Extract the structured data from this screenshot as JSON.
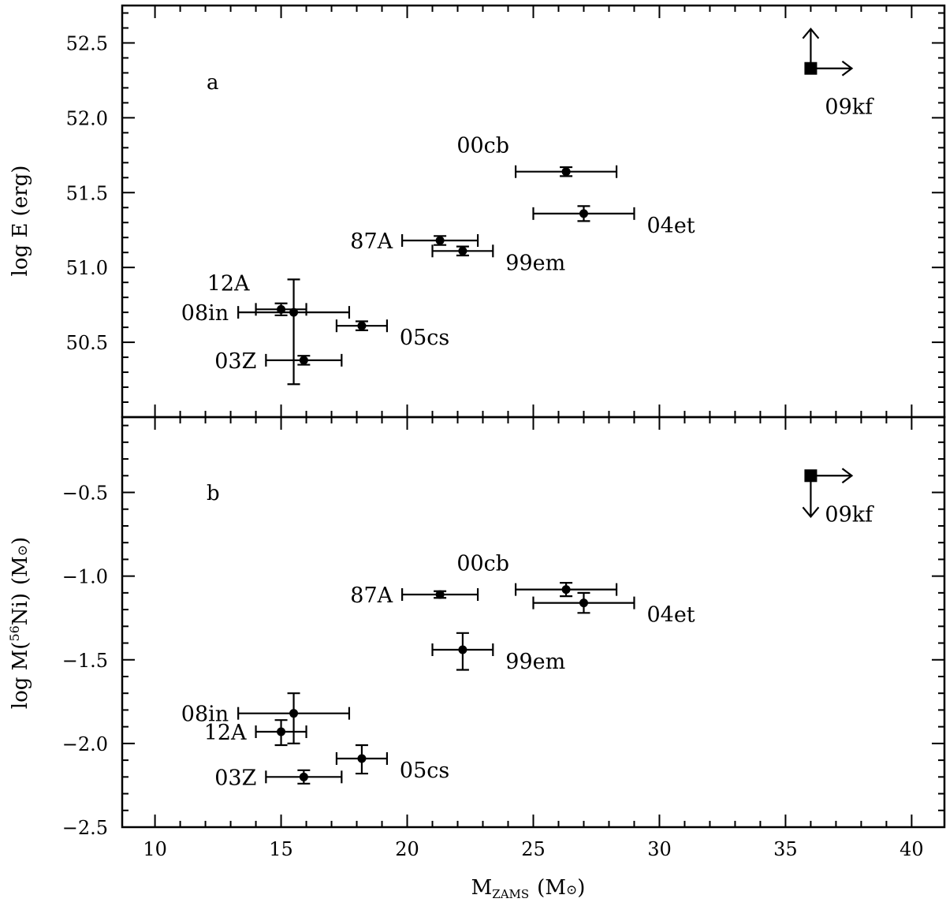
{
  "chart_data": [
    {
      "type": "scatter",
      "panel": "a",
      "ylabel": "log E (erg)",
      "xlim": [
        8.7,
        41.3
      ],
      "ylim": [
        50.0,
        52.75
      ],
      "xticks": [
        10,
        15,
        20,
        25,
        30,
        35,
        40
      ],
      "yticks": [
        50.5,
        51.0,
        51.5,
        52.0,
        52.5
      ],
      "ytick_labels": [
        "50.5",
        "51.0",
        "51.5",
        "52.0",
        "52.5"
      ],
      "points": [
        {
          "label": "87A",
          "x": 21.3,
          "xerr_lo": 1.5,
          "xerr_hi": 1.5,
          "y": 51.18,
          "yerr_lo": 0.03,
          "yerr_hi": 0.03,
          "label_pos": "left"
        },
        {
          "label": "99em",
          "x": 22.2,
          "xerr_lo": 1.2,
          "xerr_hi": 1.2,
          "y": 51.11,
          "yerr_lo": 0.03,
          "yerr_hi": 0.03,
          "label_pos": "right"
        },
        {
          "label": "00cb",
          "x": 26.3,
          "xerr_lo": 2.0,
          "xerr_hi": 2.0,
          "y": 51.64,
          "yerr_lo": 0.03,
          "yerr_hi": 0.03,
          "label_pos": "upper-left"
        },
        {
          "label": "03Z",
          "x": 15.9,
          "xerr_lo": 1.5,
          "xerr_hi": 1.5,
          "y": 50.38,
          "yerr_lo": 0.03,
          "yerr_hi": 0.03,
          "label_pos": "left"
        },
        {
          "label": "04et",
          "x": 27.0,
          "xerr_lo": 2.0,
          "xerr_hi": 2.0,
          "y": 51.36,
          "yerr_lo": 0.05,
          "yerr_hi": 0.05,
          "label_pos": "right"
        },
        {
          "label": "05cs",
          "x": 18.2,
          "xerr_lo": 1.0,
          "xerr_hi": 1.0,
          "y": 50.61,
          "yerr_lo": 0.03,
          "yerr_hi": 0.03,
          "label_pos": "right"
        },
        {
          "label": "12A",
          "x": 15.0,
          "xerr_lo": 1.0,
          "xerr_hi": 1.0,
          "y": 50.72,
          "yerr_lo": 0.04,
          "yerr_hi": 0.04,
          "label_pos": "upper-left"
        },
        {
          "label": "08in",
          "x": 15.5,
          "xerr_lo": 2.2,
          "xerr_hi": 2.2,
          "y": 50.7,
          "yerr_lo": 0.48,
          "yerr_hi": 0.22,
          "label_pos": "left"
        }
      ],
      "limit_point": {
        "label": "09kf",
        "x": 36.0,
        "y": 52.33,
        "arrows": [
          "right",
          "up"
        ],
        "marker": "square"
      }
    },
    {
      "type": "scatter",
      "panel": "b",
      "ylabel": "log M(56Ni) (M⊙)",
      "xlim": [
        8.7,
        41.3
      ],
      "ylim": [
        -2.5,
        -0.05
      ],
      "xticks": [
        10,
        15,
        20,
        25,
        30,
        35,
        40
      ],
      "yticks": [
        -2.5,
        -2.0,
        -1.5,
        -1.0,
        -0.5
      ],
      "ytick_labels": [
        "−2.5",
        "−2.0",
        "−1.5",
        "−1.0",
        "−0.5"
      ],
      "points": [
        {
          "label": "87A",
          "x": 21.3,
          "xerr_lo": 1.5,
          "xerr_hi": 1.5,
          "y": -1.11,
          "yerr_lo": 0.02,
          "yerr_hi": 0.02,
          "label_pos": "left"
        },
        {
          "label": "00cb",
          "x": 26.3,
          "xerr_lo": 2.0,
          "xerr_hi": 2.0,
          "y": -1.08,
          "yerr_lo": 0.04,
          "yerr_hi": 0.04,
          "label_pos": "upper-left"
        },
        {
          "label": "04et",
          "x": 27.0,
          "xerr_lo": 2.0,
          "xerr_hi": 2.0,
          "y": -1.16,
          "yerr_lo": 0.06,
          "yerr_hi": 0.06,
          "label_pos": "right"
        },
        {
          "label": "99em",
          "x": 22.2,
          "xerr_lo": 1.2,
          "xerr_hi": 1.2,
          "y": -1.44,
          "yerr_lo": 0.12,
          "yerr_hi": 0.1,
          "label_pos": "right"
        },
        {
          "label": "08in",
          "x": 15.5,
          "xerr_lo": 2.2,
          "xerr_hi": 2.2,
          "y": -1.82,
          "yerr_lo": 0.18,
          "yerr_hi": 0.12,
          "label_pos": "left"
        },
        {
          "label": "12A",
          "x": 15.0,
          "xerr_lo": 1.0,
          "xerr_hi": 1.0,
          "y": -1.93,
          "yerr_lo": 0.08,
          "yerr_hi": 0.07,
          "label_pos": "left"
        },
        {
          "label": "05cs",
          "x": 18.2,
          "xerr_lo": 1.0,
          "xerr_hi": 1.0,
          "y": -2.09,
          "yerr_lo": 0.09,
          "yerr_hi": 0.08,
          "label_pos": "right"
        },
        {
          "label": "03Z",
          "x": 15.9,
          "xerr_lo": 1.5,
          "xerr_hi": 1.5,
          "y": -2.2,
          "yerr_lo": 0.04,
          "yerr_hi": 0.04,
          "label_pos": "left"
        }
      ],
      "limit_point": {
        "label": "09kf",
        "x": 36.0,
        "y": -0.4,
        "arrows": [
          "right",
          "down"
        ],
        "marker": "square"
      }
    }
  ],
  "x_axis": {
    "xlabel_main": "M",
    "xlabel_sub": "ZAMS",
    "xlabel_open": "(M",
    "xlabel_sun": "⊙",
    "xlabel_close": ")",
    "xtick_labels": [
      "10",
      "15",
      "20",
      "25",
      "30",
      "35",
      "40"
    ]
  },
  "y_titles": {
    "a": "log E (erg)",
    "b_pre": "log M(",
    "b_sup": "56",
    "b_elem": "Ni)",
    "b_unit_open": "(M",
    "b_unit_sun": "⊙",
    "b_unit_close": ")"
  },
  "panel_letters": {
    "a": "a",
    "b": "b"
  }
}
